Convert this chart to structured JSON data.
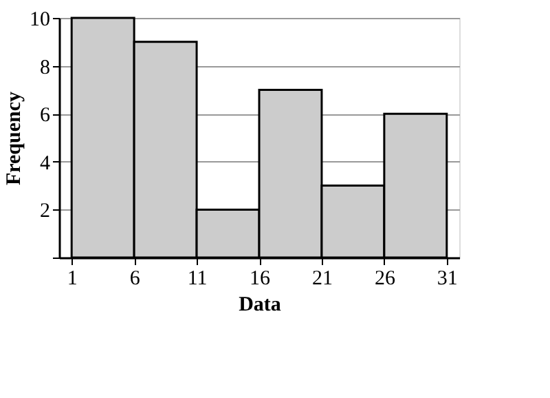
{
  "chart_data": {
    "type": "histogram",
    "xlabel": "Data",
    "ylabel": "Frequency",
    "bins": [
      1,
      6,
      11,
      16,
      21,
      26,
      31
    ],
    "values": [
      10,
      9,
      2,
      7,
      3,
      6
    ],
    "color": "#cccccc",
    "xlim": [
      0,
      32
    ],
    "xticks": [
      1,
      6,
      11,
      16,
      21,
      26,
      31
    ],
    "ylim": [
      0,
      10
    ],
    "yticks": [
      {
        "value": 0,
        "label": null
      },
      2,
      4,
      6,
      8,
      10
    ],
    "grid": "y"
  }
}
